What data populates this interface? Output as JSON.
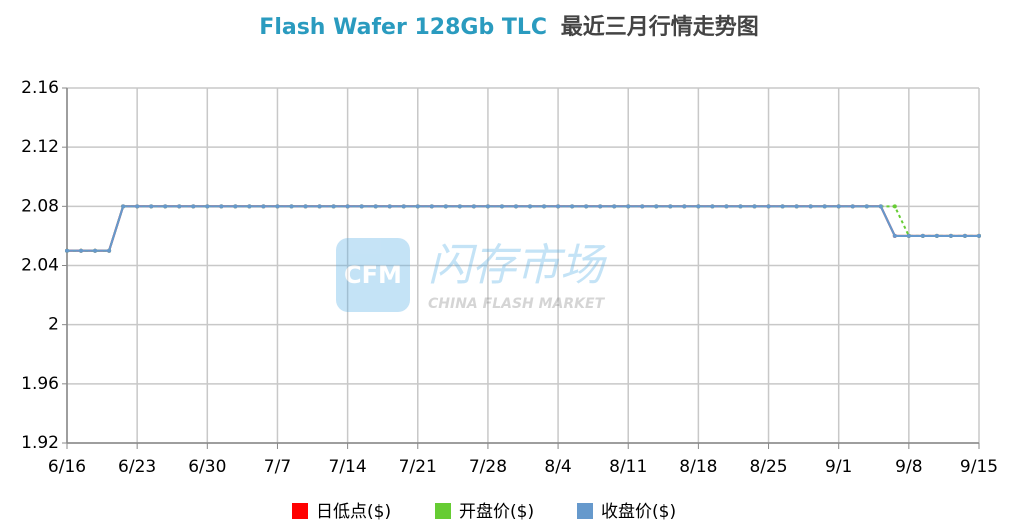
{
  "chart_data": {
    "type": "line",
    "title": [
      "Flash Wafer 128Gb TLC",
      "最近三月行情走势图"
    ],
    "watermark": {
      "brand": "CFM",
      "name": "闪存市场",
      "tagline": "CHINA FLASH MARKET"
    },
    "categories": [
      "6/16",
      null,
      null,
      null,
      null,
      "6/23",
      null,
      null,
      null,
      null,
      "6/30",
      null,
      null,
      null,
      null,
      "7/7",
      null,
      null,
      null,
      null,
      "7/14",
      null,
      null,
      null,
      null,
      "7/21",
      null,
      null,
      null,
      null,
      "7/28",
      null,
      null,
      null,
      null,
      "8/4",
      null,
      null,
      null,
      null,
      "8/11",
      null,
      null,
      null,
      null,
      "8/18",
      null,
      null,
      null,
      null,
      "8/25",
      null,
      null,
      null,
      null,
      "9/1",
      null,
      null,
      null,
      null,
      "9/8",
      null,
      null,
      null,
      null,
      "9/15"
    ],
    "ylim": [
      1.92,
      2.16
    ],
    "yticks": [
      1.92,
      1.96,
      2,
      2.04,
      2.08,
      2.12,
      2.16
    ],
    "grid": true,
    "legend": "bottom",
    "series": [
      {
        "name": "日低点($)",
        "color": "#ff0000",
        "values": [
          2.05,
          2.05,
          2.05,
          2.05,
          2.08,
          2.08,
          2.08,
          2.08,
          2.08,
          2.08,
          2.08,
          2.08,
          2.08,
          2.08,
          2.08,
          2.08,
          2.08,
          2.08,
          2.08,
          2.08,
          2.08,
          2.08,
          2.08,
          2.08,
          2.08,
          2.08,
          2.08,
          2.08,
          2.08,
          2.08,
          2.08,
          2.08,
          2.08,
          2.08,
          2.08,
          2.08,
          2.08,
          2.08,
          2.08,
          2.08,
          2.08,
          2.08,
          2.08,
          2.08,
          2.08,
          2.08,
          2.08,
          2.08,
          2.08,
          2.08,
          2.08,
          2.08,
          2.08,
          2.08,
          2.08,
          2.08,
          2.08,
          2.08,
          2.08,
          2.06,
          2.06,
          2.06,
          2.06,
          2.06,
          2.06,
          2.06
        ]
      },
      {
        "name": "开盘价($)",
        "color": "#66cc33",
        "values": [
          2.05,
          2.05,
          2.05,
          2.05,
          2.08,
          2.08,
          2.08,
          2.08,
          2.08,
          2.08,
          2.08,
          2.08,
          2.08,
          2.08,
          2.08,
          2.08,
          2.08,
          2.08,
          2.08,
          2.08,
          2.08,
          2.08,
          2.08,
          2.08,
          2.08,
          2.08,
          2.08,
          2.08,
          2.08,
          2.08,
          2.08,
          2.08,
          2.08,
          2.08,
          2.08,
          2.08,
          2.08,
          2.08,
          2.08,
          2.08,
          2.08,
          2.08,
          2.08,
          2.08,
          2.08,
          2.08,
          2.08,
          2.08,
          2.08,
          2.08,
          2.08,
          2.08,
          2.08,
          2.08,
          2.08,
          2.08,
          2.08,
          2.08,
          2.08,
          2.08,
          2.06,
          2.06,
          2.06,
          2.06,
          2.06,
          2.06
        ]
      },
      {
        "name": "收盘价($)",
        "color": "#6699cc",
        "values": [
          2.05,
          2.05,
          2.05,
          2.05,
          2.08,
          2.08,
          2.08,
          2.08,
          2.08,
          2.08,
          2.08,
          2.08,
          2.08,
          2.08,
          2.08,
          2.08,
          2.08,
          2.08,
          2.08,
          2.08,
          2.08,
          2.08,
          2.08,
          2.08,
          2.08,
          2.08,
          2.08,
          2.08,
          2.08,
          2.08,
          2.08,
          2.08,
          2.08,
          2.08,
          2.08,
          2.08,
          2.08,
          2.08,
          2.08,
          2.08,
          2.08,
          2.08,
          2.08,
          2.08,
          2.08,
          2.08,
          2.08,
          2.08,
          2.08,
          2.08,
          2.08,
          2.08,
          2.08,
          2.08,
          2.08,
          2.08,
          2.08,
          2.08,
          2.08,
          2.06,
          2.06,
          2.06,
          2.06,
          2.06,
          2.06,
          2.06
        ]
      }
    ]
  }
}
